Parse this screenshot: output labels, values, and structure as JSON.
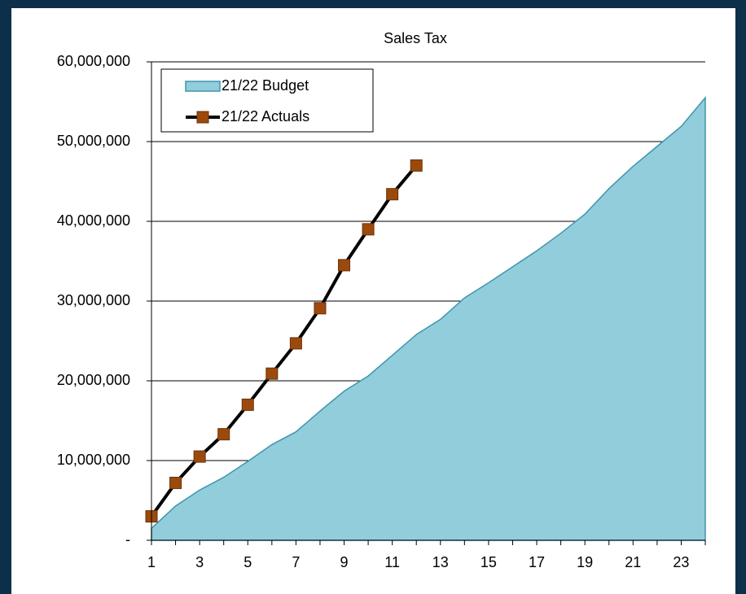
{
  "chart_data": {
    "type": "area_line",
    "title": "Sales Tax",
    "categories": [
      1,
      null,
      3,
      null,
      5,
      null,
      7,
      null,
      9,
      null,
      11,
      null,
      13,
      null,
      15,
      null,
      17,
      null,
      19,
      null,
      21,
      null,
      23,
      null
    ],
    "series": [
      {
        "name": "21/22 Budget",
        "type": "area",
        "color": "#92cddc",
        "values": [
          1500000,
          4300000,
          6300000,
          7900000,
          9900000,
          12000000,
          13600000,
          16200000,
          18700000,
          20600000,
          23200000,
          25800000,
          27700000,
          30400000,
          32300000,
          34300000,
          36300000,
          38500000,
          40900000,
          44100000,
          46900000,
          49400000,
          51900000,
          55500000
        ]
      },
      {
        "name": "21/22 Actuals",
        "type": "line",
        "color": "#000000",
        "marker_color": "#9c4a0c",
        "values": [
          3000000,
          7200000,
          10500000,
          13300000,
          17000000,
          20900000,
          24700000,
          29100000,
          34500000,
          39000000,
          43400000,
          47000000,
          null,
          null,
          null,
          null,
          null,
          null,
          null,
          null,
          null,
          null,
          null,
          null
        ]
      }
    ],
    "ylim": [
      0,
      60000000
    ],
    "yticks": [
      {
        "value": 0,
        "label": "-"
      },
      {
        "value": 10000000,
        "label": "10,000,000"
      },
      {
        "value": 20000000,
        "label": "20,000,000"
      },
      {
        "value": 30000000,
        "label": "30,000,000"
      },
      {
        "value": 40000000,
        "label": "40,000,000"
      },
      {
        "value": 50000000,
        "label": "50,000,000"
      },
      {
        "value": 60000000,
        "label": "60,000,000"
      }
    ],
    "grid": true,
    "legend": "upper left"
  }
}
